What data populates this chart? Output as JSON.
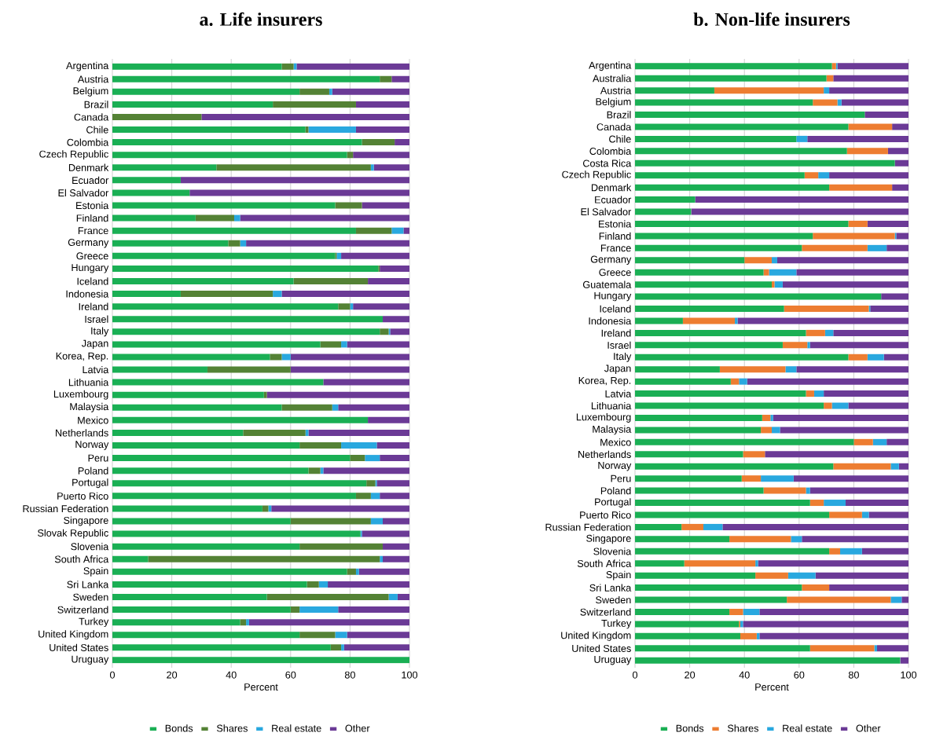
{
  "chart_data": [
    {
      "type": "bar",
      "orientation": "horizontal",
      "stacked": true,
      "title": "a. Life insurers",
      "xlabel": "Percent",
      "categories": [
        "Argentina",
        "Austria",
        "Belgium",
        "Brazil",
        "Canada",
        "Chile",
        "Colombia",
        "Czech Republic",
        "Denmark",
        "Ecuador",
        "El Salvador",
        "Estonia",
        "Finland",
        "France",
        "Germany",
        "Greece",
        "Hungary",
        "Iceland",
        "Indonesia",
        "Ireland",
        "Israel",
        "Italy",
        "Japan",
        "Korea, Rep.",
        "Latvia",
        "Lithuania",
        "Luxembourg",
        "Malaysia",
        "Mexico",
        "Netherlands",
        "Norway",
        "Peru",
        "Poland",
        "Portugal",
        "Puerto Rico",
        "Russian Federation",
        "Singapore",
        "Slovak Republic",
        "Slovenia",
        "South Africa",
        "Spain",
        "Sri Lanka",
        "Sweden",
        "Switzerland",
        "Turkey",
        "United Kingdom",
        "United States",
        "Uruguay"
      ],
      "series": [
        {
          "name": "Bonds",
          "color": "#1aaf54",
          "values": [
            57,
            90,
            63,
            54,
            0,
            65,
            84,
            79,
            35,
            23,
            26,
            75,
            28,
            82,
            39,
            75,
            89.5,
            61,
            23,
            76,
            91,
            90,
            70,
            53,
            32,
            71,
            51,
            57,
            86,
            44,
            63,
            80,
            66,
            85.5,
            82,
            50.5,
            60,
            83.5,
            63,
            12,
            79,
            65.5,
            52,
            60,
            43,
            63,
            73.5,
            100
          ]
        },
        {
          "name": "Shares",
          "color": "#548235",
          "values": [
            4,
            4,
            10,
            28,
            30,
            1,
            11,
            2,
            52,
            0,
            0,
            9,
            13,
            12,
            4,
            0.5,
            0.5,
            25,
            31,
            4,
            0,
            3,
            7,
            4,
            28,
            0,
            1,
            17,
            0,
            21,
            14,
            5,
            4,
            3,
            5,
            2,
            27,
            0,
            28,
            78,
            3,
            4,
            41,
            3,
            2,
            12,
            3.5,
            0
          ]
        },
        {
          "name": "Real estate",
          "color": "#29a8df",
          "values": [
            1,
            0,
            1,
            0,
            0,
            16,
            0,
            0,
            1,
            0,
            0,
            0,
            2,
            4,
            2,
            1.5,
            0,
            0,
            3,
            1,
            0,
            0.5,
            2,
            3,
            0,
            0,
            0,
            2,
            0,
            1,
            12,
            5,
            1,
            0.5,
            3,
            1,
            4,
            0.5,
            0,
            1,
            1,
            3,
            3,
            13,
            1,
            4,
            1,
            0
          ]
        },
        {
          "name": "Other",
          "color": "#6b3a96",
          "values": [
            38,
            6,
            26,
            18,
            70,
            18,
            5,
            19,
            12,
            77,
            74,
            16,
            57,
            2,
            55,
            23,
            10,
            14,
            43,
            19,
            9,
            6.5,
            21,
            40,
            40,
            29,
            48,
            24,
            14,
            34,
            11,
            10,
            29,
            11,
            10,
            46.5,
            9,
            16,
            9,
            9,
            17,
            27.5,
            4,
            24,
            54,
            21,
            22,
            0
          ]
        }
      ],
      "xlim": [
        0,
        100
      ],
      "xticks": [
        0,
        20,
        40,
        60,
        80,
        100
      ],
      "grid": "x",
      "legend": "bottom"
    },
    {
      "type": "bar",
      "orientation": "horizontal",
      "stacked": true,
      "title": "b. Non-life insurers",
      "xlabel": "Percent",
      "categories": [
        "Argentina",
        "Australia",
        "Austria",
        "Belgium",
        "Brazil",
        "Canada",
        "Chile",
        "Colombia",
        "Costa Rica",
        "Czech Republic",
        "Denmark",
        "Ecuador",
        "El Salvador",
        "Estonia",
        "Finland",
        "France",
        "Germany",
        "Greece",
        "Guatemala",
        "Hungary",
        "Iceland",
        "Indonesia",
        "Ireland",
        "Israel",
        "Italy",
        "Japan",
        "Korea, Rep.",
        "Latvia",
        "Lithuania",
        "Luxembourg",
        "Malaysia",
        "Mexico",
        "Netherlands",
        "Norway",
        "Peru",
        "Poland",
        "Portugal",
        "Puerto Rico",
        "Russian Federation",
        "Singapore",
        "Slovenia",
        "South Africa",
        "Spain",
        "Sri Lanka",
        "Sweden",
        "Switzerland",
        "Turkey",
        "United Kingdom",
        "United States",
        "Uruguay"
      ],
      "series": [
        {
          "name": "Bonds",
          "color": "#1aaf54",
          "values": [
            72,
            70,
            29,
            65,
            84,
            78,
            59,
            77.5,
            95,
            62,
            71,
            22,
            20.5,
            78,
            65,
            61,
            40,
            47,
            50,
            90,
            54.5,
            17.5,
            62.5,
            54,
            78,
            31,
            35,
            62.5,
            69,
            46.5,
            46,
            80,
            39.5,
            72.5,
            39,
            47,
            64,
            71,
            17,
            34.5,
            71,
            18,
            44,
            61,
            55.5,
            34.5,
            38,
            38.5,
            64,
            97
          ]
        },
        {
          "name": "Shares",
          "color": "#ed7d31",
          "values": [
            1.5,
            2.5,
            40,
            9,
            0,
            16,
            0,
            15,
            0,
            5,
            23,
            0,
            0,
            7,
            30,
            24,
            10,
            2,
            1,
            0,
            31,
            19,
            7,
            9,
            7,
            24,
            3,
            3,
            3,
            3,
            4,
            7,
            8,
            21,
            7,
            15.5,
            5,
            12,
            8,
            22.5,
            4,
            26,
            12,
            10,
            38,
            5,
            0.5,
            6,
            23.5,
            0
          ]
        },
        {
          "name": "Real estate",
          "color": "#29a8df",
          "values": [
            0.5,
            0,
            2,
            1.5,
            0,
            0,
            4,
            0,
            0,
            4,
            0,
            0,
            0,
            0,
            0.5,
            7,
            2,
            10,
            3,
            0,
            0.5,
            1,
            3,
            1,
            6,
            4,
            3,
            3.5,
            6,
            1,
            3,
            5,
            0,
            3,
            12,
            1.5,
            8,
            2.5,
            7,
            4,
            8,
            1,
            10,
            0,
            4,
            6,
            1,
            1,
            1,
            0
          ]
        },
        {
          "name": "Other",
          "color": "#6b3a96",
          "values": [
            26,
            27.5,
            29,
            24.5,
            16,
            6,
            37,
            7.5,
            5,
            29,
            6,
            78,
            79.5,
            15,
            4.5,
            8,
            48,
            41,
            46,
            10,
            14,
            62.5,
            27.5,
            36,
            9,
            41,
            59,
            31,
            22,
            49.5,
            47,
            8,
            52.5,
            3.5,
            42,
            36,
            23,
            14.5,
            68,
            39,
            17,
            55,
            34,
            29,
            2.5,
            54.5,
            60.5,
            54.5,
            11.5,
            3
          ]
        }
      ],
      "xlim": [
        0,
        100
      ],
      "xticks": [
        0,
        20,
        40,
        60,
        80,
        100
      ],
      "grid": "x",
      "legend": "bottom"
    }
  ]
}
